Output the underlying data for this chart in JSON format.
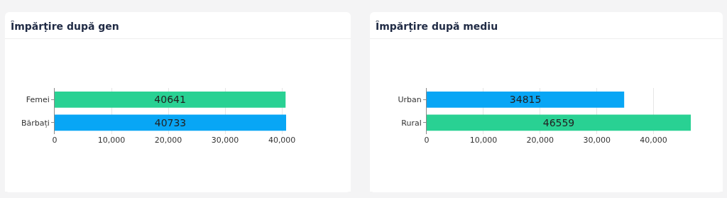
{
  "chart_data": [
    {
      "type": "bar",
      "orientation": "horizontal",
      "title": "Împărțire după gen",
      "categories": [
        "Femei",
        "Bărbați"
      ],
      "values": [
        40641,
        40733
      ],
      "colors": [
        "#29d193",
        "#08a6f5"
      ],
      "xlim": [
        0,
        40733
      ],
      "xticks": [
        0,
        {
          "value": 10000,
          "label": "10,000"
        },
        {
          "value": 20000,
          "label": "20,000"
        },
        {
          "value": 30000,
          "label": "30,000"
        },
        {
          "value": 40000,
          "label": "40,000"
        }
      ],
      "grid": "x",
      "data_labels": true
    },
    {
      "type": "bar",
      "orientation": "horizontal",
      "title": "Împărțire după mediu",
      "categories": [
        "Urban",
        "Rural"
      ],
      "values": [
        34815,
        46559
      ],
      "colors": [
        "#08a6f5",
        "#29d193"
      ],
      "xlim": [
        0,
        46559
      ],
      "xticks": [
        0,
        {
          "value": 10000,
          "label": "10,000"
        },
        {
          "value": 20000,
          "label": "20,000"
        },
        {
          "value": 30000,
          "label": "30,000"
        },
        {
          "value": 40000,
          "label": "40,000"
        }
      ],
      "grid": "x",
      "data_labels": true
    }
  ]
}
